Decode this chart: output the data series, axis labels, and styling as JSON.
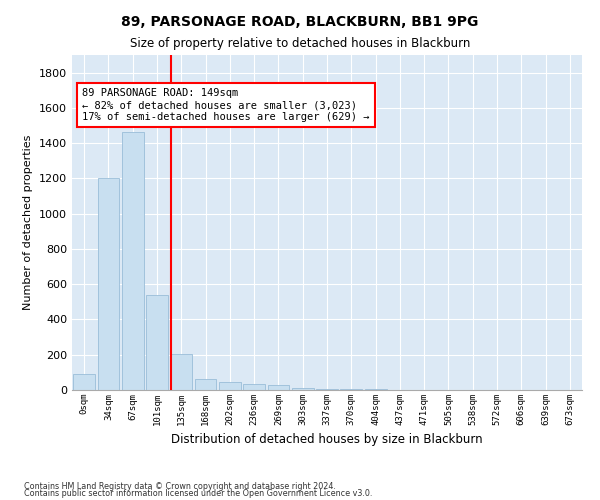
{
  "title": "89, PARSONAGE ROAD, BLACKBURN, BB1 9PG",
  "subtitle": "Size of property relative to detached houses in Blackburn",
  "xlabel": "Distribution of detached houses by size in Blackburn",
  "ylabel": "Number of detached properties",
  "bar_color": "#c8dff0",
  "bar_edgecolor": "#9abdd8",
  "background_color": "#dce9f5",
  "grid_color": "#ffffff",
  "categories": [
    "0sqm",
    "34sqm",
    "67sqm",
    "101sqm",
    "135sqm",
    "168sqm",
    "202sqm",
    "236sqm",
    "269sqm",
    "303sqm",
    "337sqm",
    "370sqm",
    "404sqm",
    "437sqm",
    "471sqm",
    "505sqm",
    "538sqm",
    "572sqm",
    "606sqm",
    "639sqm",
    "673sqm"
  ],
  "values": [
    90,
    1200,
    1465,
    540,
    205,
    65,
    45,
    35,
    28,
    12,
    8,
    5,
    3,
    2,
    1,
    1,
    1,
    0,
    0,
    0,
    0
  ],
  "ylim": [
    0,
    1900
  ],
  "yticks": [
    0,
    200,
    400,
    600,
    800,
    1000,
    1200,
    1400,
    1600,
    1800
  ],
  "property_line_x": 3.57,
  "annotation_text": "89 PARSONAGE ROAD: 149sqm\n← 82% of detached houses are smaller (3,023)\n17% of semi-detached houses are larger (629) →",
  "footnote1": "Contains HM Land Registry data © Crown copyright and database right 2024.",
  "footnote2": "Contains public sector information licensed under the Open Government Licence v3.0."
}
